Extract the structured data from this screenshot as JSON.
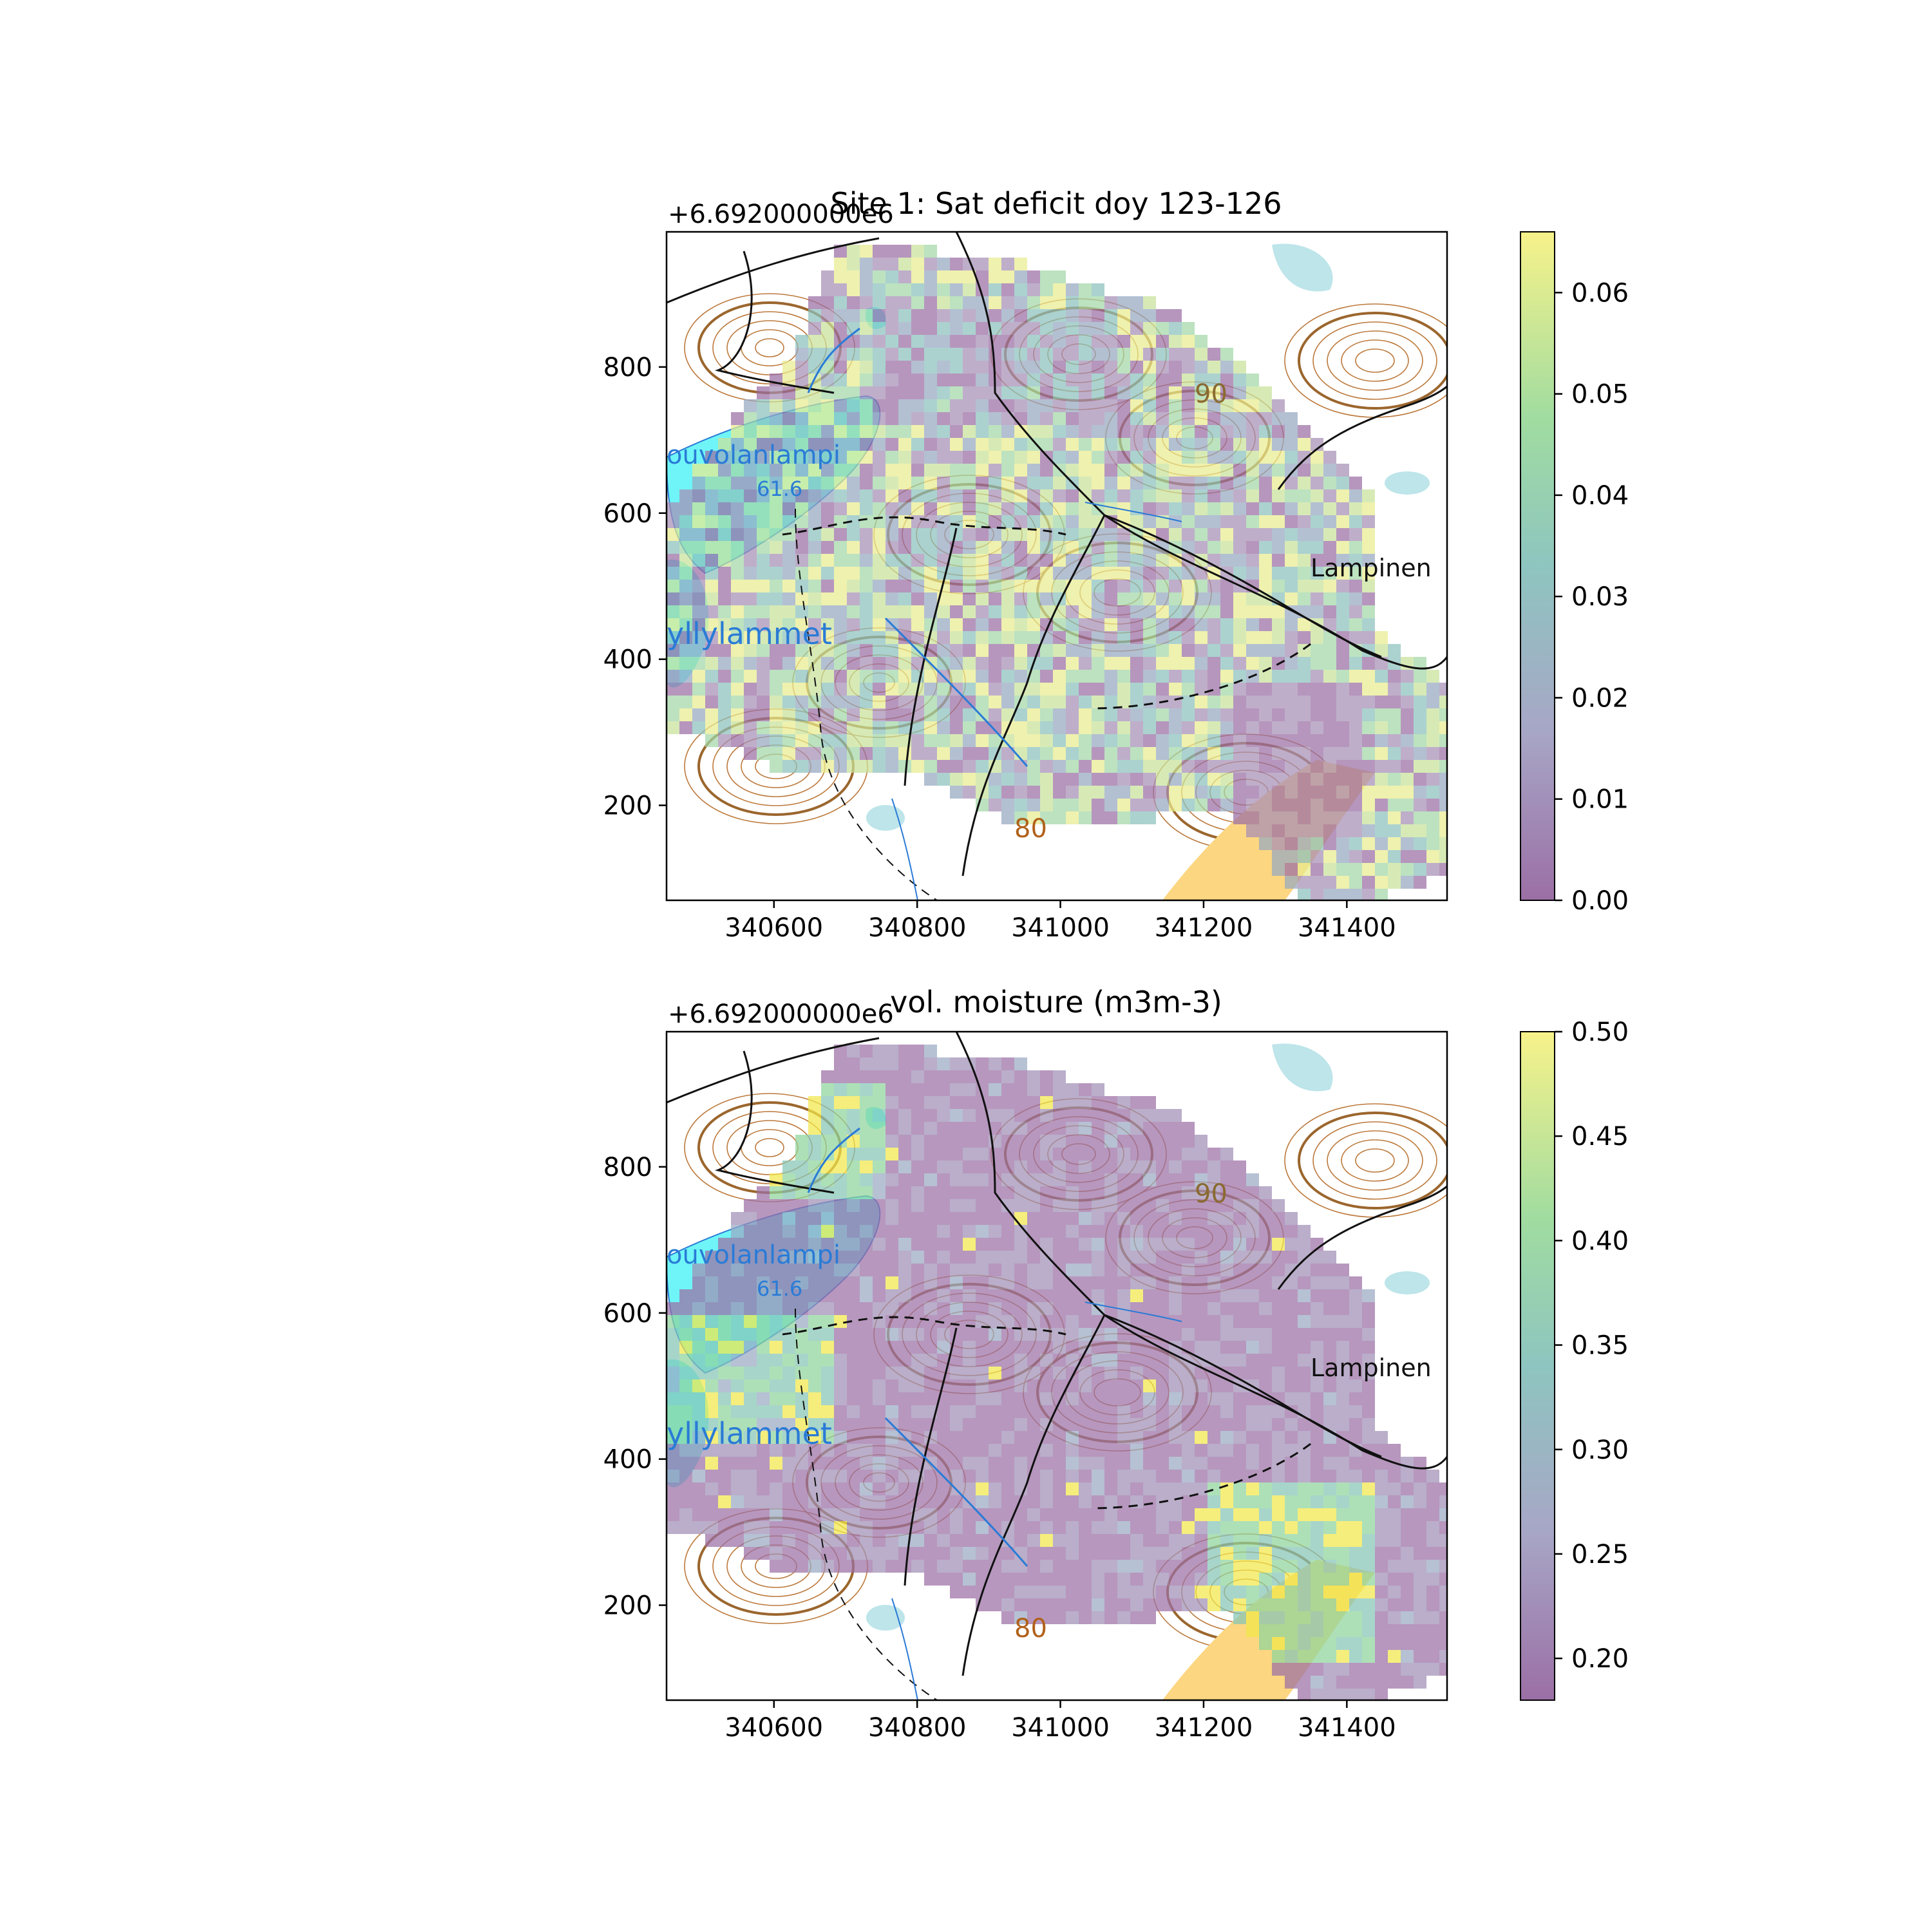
{
  "chart_data": [
    {
      "type": "heatmap",
      "title": "Site 1: Sat deficit doy 123-126",
      "y_offset_label": "+6.692000000e6",
      "x_ticks": [
        340600,
        340800,
        341000,
        341200,
        341400
      ],
      "y_ticks": [
        200,
        400,
        600,
        800
      ],
      "xlim": [
        340450,
        341540
      ],
      "ylim": [
        70,
        985
      ],
      "colorbar": {
        "ticks": [
          "0.00",
          "0.01",
          "0.02",
          "0.03",
          "0.04",
          "0.05",
          "0.06"
        ],
        "range": [
          0,
          0.066
        ]
      },
      "map_labels": [
        "ouvolanlampi",
        "61.6",
        "yllylammet",
        "90",
        "80",
        "Lampinen"
      ],
      "colormap": "viridis, alpha 0.5, over topographic basemap"
    },
    {
      "type": "heatmap",
      "title": "vol. moisture (m3m-3)",
      "y_offset_label": "+6.692000000e6",
      "x_ticks": [
        340600,
        340800,
        341000,
        341200,
        341400
      ],
      "y_ticks": [
        200,
        400,
        600,
        800
      ],
      "xlim": [
        340450,
        341540
      ],
      "ylim": [
        70,
        985
      ],
      "colorbar": {
        "ticks": [
          "0.20",
          "0.25",
          "0.30",
          "0.35",
          "0.40",
          "0.45",
          "0.50"
        ],
        "range": [
          0.18,
          0.5
        ]
      },
      "map_labels": [
        "ouvolanlampi",
        "61.6",
        "yllylammet",
        "90",
        "80",
        "Lampinen"
      ],
      "colormap": "viridis, alpha 0.5, over topographic basemap"
    }
  ]
}
